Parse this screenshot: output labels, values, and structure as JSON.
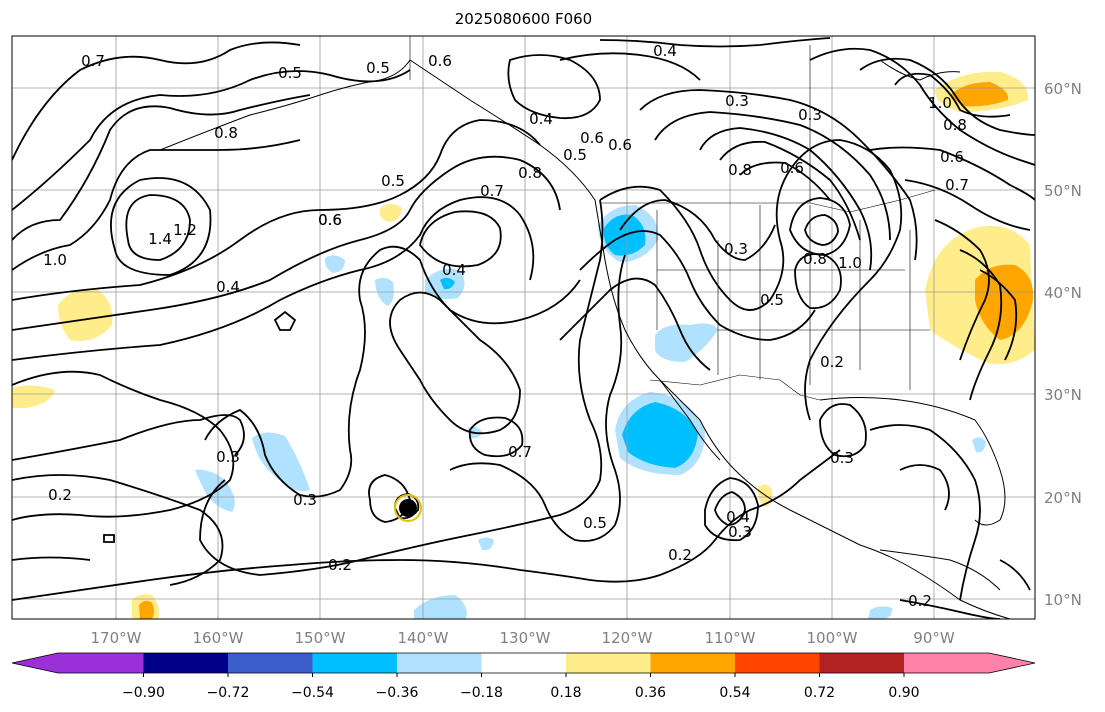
{
  "title": "2025080600 F060",
  "latitude_labels": [
    "60°N",
    "50°N",
    "40°N",
    "30°N",
    "20°N",
    "10°N"
  ],
  "longitude_labels": [
    "170°W",
    "160°W",
    "150°W",
    "140°W",
    "130°W",
    "120°W",
    "110°W",
    "100°W",
    "90°W"
  ],
  "contour_labels": [
    "0.7",
    "0.6",
    "0.5",
    "0.5",
    "0.4",
    "0.3",
    "0.3",
    "0.8",
    "0.6",
    "0.8",
    "0.6",
    "0.5",
    "0.7",
    "0.5",
    "0.6",
    "0.8",
    "1.0",
    "1.4",
    "1.2",
    "1.0",
    "0.7",
    "0.6",
    "0.6",
    "0.4",
    "0.4",
    "0.4",
    "0.8",
    "0.6",
    "0.3",
    "0.5",
    "0.8",
    "1.0",
    "0.2",
    "0.3",
    "0.3",
    "0.2",
    "0.7",
    "0.5",
    "0.2",
    "0.4",
    "0.3",
    "0.3",
    "0.2",
    "0.2"
  ],
  "colorbar": {
    "ticks": [
      "−0.90",
      "−0.72",
      "−0.54",
      "−0.36",
      "−0.18",
      "0.18",
      "0.36",
      "0.54",
      "0.72",
      "0.90"
    ],
    "colors": [
      "#9b30d9",
      "#00008b",
      "#3a5fcd",
      "#00bfff",
      "#b0e2ff",
      "#ffffff",
      "#ffec8b",
      "#ffa500",
      "#ff4500",
      "#b22222",
      "#ff82ab"
    ]
  }
}
